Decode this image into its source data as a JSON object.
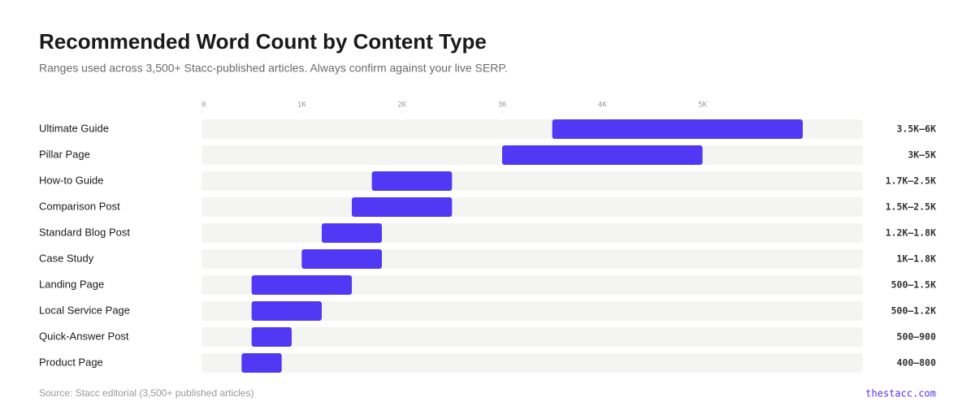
{
  "chart_data": {
    "type": "range-bar",
    "title": "Recommended Word Count by Content Type",
    "subtitle": "Ranges used across 3,500+ Stacc-published articles. Always confirm against your live SERP.",
    "categories": [
      "Ultimate Guide",
      "Pillar Page",
      "How-to Guide",
      "Comparison Post",
      "Standard Blog Post",
      "Case Study",
      "Landing Page",
      "Local Service Page",
      "Quick-Answer Post",
      "Product Page"
    ],
    "low": [
      3500,
      3000,
      1700,
      1500,
      1200,
      1000,
      500,
      500,
      500,
      400
    ],
    "high": [
      6000,
      5000,
      2500,
      2500,
      1800,
      1800,
      1500,
      1200,
      900,
      800
    ],
    "value_labels": [
      "3.5K–6K",
      "3K–5K",
      "1.7K–2.5K",
      "1.5K–2.5K",
      "1.2K–1.8K",
      "1K–1.8K",
      "500–1.5K",
      "500–1.2K",
      "500–900",
      "400–800"
    ],
    "color": "#5038f5",
    "track_color": "#f4f4f2",
    "xlim": [
      0,
      6600
    ],
    "xticks": [
      0,
      {
        "value": 1000,
        "label": "1K"
      },
      {
        "value": 2000,
        "label": "2K"
      },
      {
        "value": 3000,
        "label": "3K"
      },
      {
        "value": 4000,
        "label": "4K"
      },
      {
        "value": 5000,
        "label": "5K"
      }
    ],
    "source": "Source: Stacc editorial (3,500+ published articles)",
    "brand": "thestacc.com"
  }
}
